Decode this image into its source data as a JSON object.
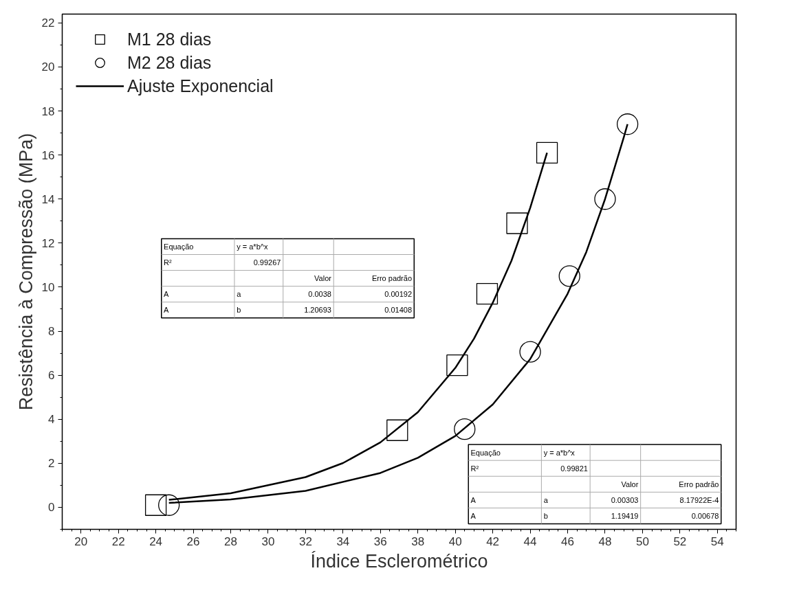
{
  "chart_data": {
    "type": "scatter",
    "xlabel": "Índice Esclerométrico",
    "ylabel": "Resistência à Compressão (MPa)",
    "xlim": [
      19,
      55
    ],
    "xticks": [
      20,
      22,
      24,
      26,
      28,
      30,
      32,
      34,
      36,
      38,
      40,
      42,
      44,
      46,
      48,
      50,
      52,
      54
    ],
    "ylim": [
      -1,
      22.4
    ],
    "yticks": [
      0,
      2,
      4,
      6,
      8,
      10,
      12,
      14,
      16,
      18,
      20,
      22
    ],
    "grid": false,
    "legend": "top left",
    "series": [
      {
        "name": "M1 28 dias",
        "marker": "square",
        "color": "#000000",
        "x": [
          24.0,
          36.9,
          40.1,
          41.7,
          43.3,
          44.9
        ],
        "values": [
          0.1,
          3.5,
          6.45,
          9.7,
          12.9,
          16.1
        ]
      },
      {
        "name": "M2 28 dias",
        "marker": "circle",
        "color": "#000000",
        "x": [
          24.7,
          40.5,
          44.0,
          46.1,
          48.0,
          49.2
        ],
        "values": [
          0.1,
          3.55,
          7.06,
          10.5,
          14.0,
          17.4
        ]
      },
      {
        "name": "Ajuste Exponencial",
        "type": "line",
        "line_style": "solid",
        "color": "#000000",
        "x": [
          24.7,
          28,
          32,
          34,
          36,
          38,
          40,
          41,
          42,
          43,
          44,
          44.9
        ],
        "values": [
          0.34,
          0.64,
          1.37,
          2.01,
          2.95,
          4.32,
          6.33,
          7.66,
          9.29,
          11.2,
          13.6,
          16.1
        ]
      },
      {
        "type": "line",
        "line_style": "solid",
        "color": "#000000",
        "x": [
          24.7,
          28,
          32,
          36,
          38,
          40,
          42,
          44,
          46,
          47,
          48,
          49,
          49.2
        ],
        "values": [
          0.2,
          0.36,
          0.75,
          1.56,
          2.25,
          3.24,
          4.67,
          6.73,
          9.7,
          11.6,
          14.0,
          16.8,
          17.4
        ]
      }
    ],
    "annotations": [
      "Equação",
      "y = a*b^x",
      "R²",
      "0.99267",
      "Valor",
      "Erro padrão",
      "A",
      "a",
      "0.0038",
      "0.00192",
      "A",
      "b",
      "1.20693",
      "0.01408",
      "Equação",
      "y = a*b^x",
      "R²",
      "0.99821",
      "Valor",
      "Erro padrão",
      "A",
      "a",
      "0.00303",
      "8.17922E-4",
      "A",
      "b",
      "1.19419",
      "0.00678"
    ]
  }
}
